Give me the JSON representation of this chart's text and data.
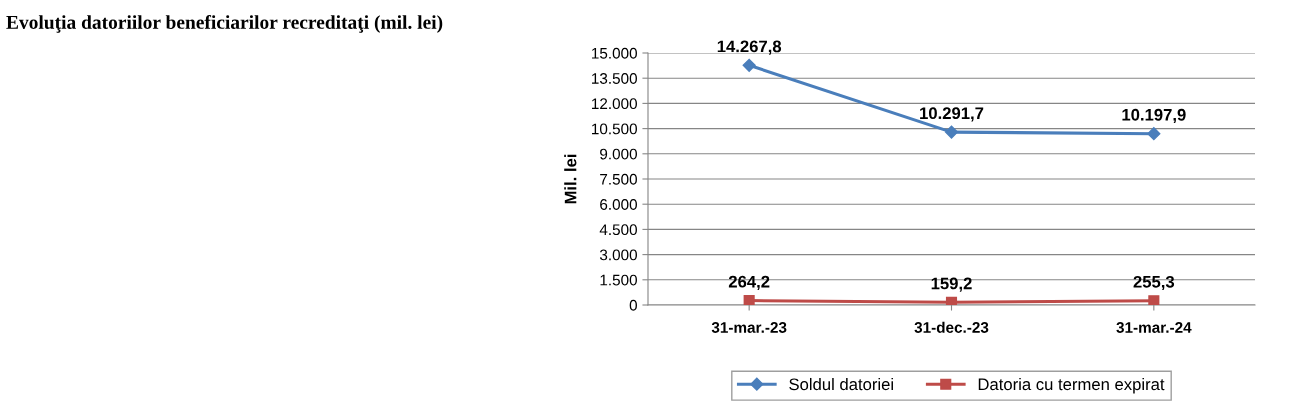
{
  "chart_data": {
    "type": "line",
    "title": "Evoluţia datoriilor beneficiarilor recreditaţi (mil. lei)",
    "ylabel": "Mil. lei",
    "categories": [
      "31-mar.-23",
      "31-dec.-23",
      "31-mar.-24"
    ],
    "series": [
      {
        "name": "Soldul datoriei",
        "color": "#4a7ebb",
        "marker": "diamond",
        "values": [
          14267.8,
          10291.7,
          10197.9
        ],
        "value_labels": [
          "14.267,8",
          "10.291,7",
          "10.197,9"
        ]
      },
      {
        "name": "Datoria cu termen expirat",
        "color": "#be4b48",
        "marker": "square",
        "values": [
          264.2,
          159.2,
          255.3
        ],
        "value_labels": [
          "264,2",
          "159,2",
          "255,3"
        ]
      }
    ],
    "ylim": [
      0,
      15000
    ],
    "yticks": [
      {
        "value": 0,
        "label": "0"
      },
      {
        "value": 1500,
        "label": "1.500"
      },
      {
        "value": 3000,
        "label": "3.000"
      },
      {
        "value": 4500,
        "label": "4.500"
      },
      {
        "value": 6000,
        "label": "6.000"
      },
      {
        "value": 7500,
        "label": "7.500"
      },
      {
        "value": 9000,
        "label": "9.000"
      },
      {
        "value": 10500,
        "label": "10.500"
      },
      {
        "value": 12000,
        "label": "12.000"
      },
      {
        "value": 13500,
        "label": "13.500"
      },
      {
        "value": 15000,
        "label": "15.000"
      }
    ],
    "grid": "y",
    "legend": "bottom"
  }
}
